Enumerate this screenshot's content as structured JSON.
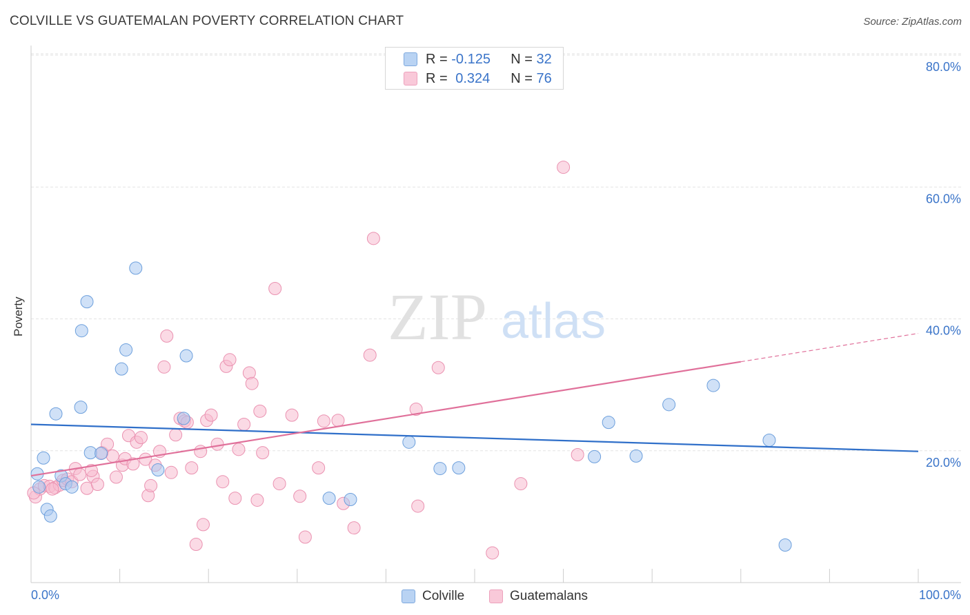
{
  "title": "COLVILLE VS GUATEMALAN POVERTY CORRELATION CHART",
  "source": "Source: ZipAtlas.com",
  "watermark": {
    "zip": "ZIP",
    "atlas": "atlas"
  },
  "legend": {
    "rows": [
      {
        "r_label": "R = ",
        "r_value": "-0.125",
        "n_label": "N = ",
        "n_value": "32"
      },
      {
        "r_label": "R = ",
        "r_value": "0.324",
        "n_label": "N = ",
        "n_value": "76"
      }
    ]
  },
  "colors": {
    "colville_fill": "#a9c8f0",
    "colville_stroke": "#6c9fdc",
    "colville_line": "#2f6fc9",
    "guatemalan_fill": "#f7bcd0",
    "guatemalan_stroke": "#ea91b0",
    "guatemalan_line": "#e0709a",
    "tick_label": "#3a74c9",
    "grid": "#e3e3e3"
  },
  "chart_data": {
    "type": "scatter",
    "title": "COLVILLE VS GUATEMALAN POVERTY CORRELATION CHART",
    "xlabel": "",
    "ylabel": "Poverty",
    "xlim": [
      0,
      100
    ],
    "ylim": [
      0,
      80
    ],
    "x_tick_labels": [
      "0.0%",
      "100.0%"
    ],
    "y_ticks": [
      20,
      40,
      60,
      80
    ],
    "y_tick_labels": [
      "20.0%",
      "40.0%",
      "60.0%",
      "80.0%"
    ],
    "grid": true,
    "legend_position": "top-center",
    "series": [
      {
        "name": "Colville",
        "r": -0.125,
        "n": 32,
        "trend": {
          "x": [
            0,
            100
          ],
          "y": [
            24.0,
            19.9
          ]
        },
        "points": [
          [
            0.7,
            16.5
          ],
          [
            0.9,
            14.5
          ],
          [
            1.4,
            18.9
          ],
          [
            1.8,
            11.1
          ],
          [
            2.2,
            10.1
          ],
          [
            2.8,
            25.6
          ],
          [
            3.4,
            16.2
          ],
          [
            3.9,
            15.0
          ],
          [
            4.6,
            14.5
          ],
          [
            5.6,
            26.6
          ],
          [
            5.7,
            38.2
          ],
          [
            6.3,
            42.6
          ],
          [
            6.7,
            19.7
          ],
          [
            7.9,
            19.6
          ],
          [
            10.2,
            32.4
          ],
          [
            10.7,
            35.3
          ],
          [
            11.8,
            47.7
          ],
          [
            14.3,
            17.1
          ],
          [
            17.2,
            24.9
          ],
          [
            17.5,
            34.4
          ],
          [
            42.6,
            21.3
          ],
          [
            46.1,
            17.3
          ],
          [
            48.2,
            17.4
          ],
          [
            33.6,
            12.8
          ],
          [
            36.0,
            12.6
          ],
          [
            63.5,
            19.1
          ],
          [
            65.1,
            24.3
          ],
          [
            68.2,
            19.2
          ],
          [
            71.9,
            27.0
          ],
          [
            76.9,
            29.9
          ],
          [
            83.2,
            21.6
          ],
          [
            85.0,
            5.7
          ]
        ]
      },
      {
        "name": "Guatemalans",
        "r": 0.324,
        "n": 76,
        "trend": {
          "x": [
            0,
            80
          ],
          "y": [
            16.2,
            33.5
          ]
        },
        "trend_dashed": {
          "x": [
            80,
            100
          ],
          "y": [
            33.5,
            37.8
          ]
        },
        "points": [
          [
            0.5,
            13.0
          ],
          [
            1.0,
            14.2
          ],
          [
            1.5,
            14.7
          ],
          [
            2.1,
            14.6
          ],
          [
            2.7,
            14.4
          ],
          [
            3.2,
            14.8
          ],
          [
            3.6,
            15.5
          ],
          [
            4.1,
            15.7
          ],
          [
            4.6,
            15.3
          ],
          [
            5.0,
            17.3
          ],
          [
            5.5,
            16.4
          ],
          [
            6.3,
            14.3
          ],
          [
            7.0,
            16.1
          ],
          [
            7.5,
            14.9
          ],
          [
            8.0,
            19.7
          ],
          [
            8.6,
            21.0
          ],
          [
            9.2,
            19.2
          ],
          [
            9.6,
            16.0
          ],
          [
            10.3,
            17.8
          ],
          [
            10.6,
            18.8
          ],
          [
            11.0,
            22.3
          ],
          [
            11.5,
            18.0
          ],
          [
            11.9,
            21.3
          ],
          [
            12.4,
            22.0
          ],
          [
            12.9,
            18.7
          ],
          [
            13.2,
            13.2
          ],
          [
            13.5,
            14.7
          ],
          [
            14.0,
            17.8
          ],
          [
            14.5,
            19.9
          ],
          [
            15.0,
            32.7
          ],
          [
            15.3,
            37.4
          ],
          [
            15.8,
            16.7
          ],
          [
            16.3,
            22.4
          ],
          [
            16.8,
            24.9
          ],
          [
            17.3,
            24.5
          ],
          [
            17.6,
            24.3
          ],
          [
            18.1,
            17.4
          ],
          [
            18.6,
            5.8
          ],
          [
            19.1,
            19.9
          ],
          [
            19.4,
            8.8
          ],
          [
            19.8,
            24.6
          ],
          [
            20.3,
            25.4
          ],
          [
            21.0,
            21.0
          ],
          [
            21.6,
            15.3
          ],
          [
            22.0,
            32.8
          ],
          [
            22.4,
            33.8
          ],
          [
            23.0,
            12.8
          ],
          [
            23.4,
            20.2
          ],
          [
            24.0,
            24.0
          ],
          [
            24.6,
            31.8
          ],
          [
            24.9,
            30.2
          ],
          [
            25.5,
            12.5
          ],
          [
            25.8,
            26.0
          ],
          [
            26.1,
            19.7
          ],
          [
            27.5,
            44.6
          ],
          [
            28.0,
            15.0
          ],
          [
            29.4,
            25.4
          ],
          [
            30.3,
            13.1
          ],
          [
            30.9,
            6.9
          ],
          [
            32.4,
            17.4
          ],
          [
            33.0,
            24.5
          ],
          [
            34.6,
            24.6
          ],
          [
            35.2,
            12.0
          ],
          [
            36.4,
            8.3
          ],
          [
            38.2,
            34.5
          ],
          [
            38.6,
            52.2
          ],
          [
            43.4,
            26.3
          ],
          [
            43.6,
            11.6
          ],
          [
            45.9,
            32.6
          ],
          [
            52.0,
            4.5
          ],
          [
            55.2,
            15.0
          ],
          [
            60.0,
            63.0
          ],
          [
            61.6,
            19.4
          ],
          [
            0.3,
            13.6
          ],
          [
            2.4,
            14.2
          ],
          [
            6.8,
            17.0
          ]
        ]
      }
    ]
  },
  "bottom_legend": [
    {
      "label": "Colville"
    },
    {
      "label": "Guatemalans"
    }
  ]
}
